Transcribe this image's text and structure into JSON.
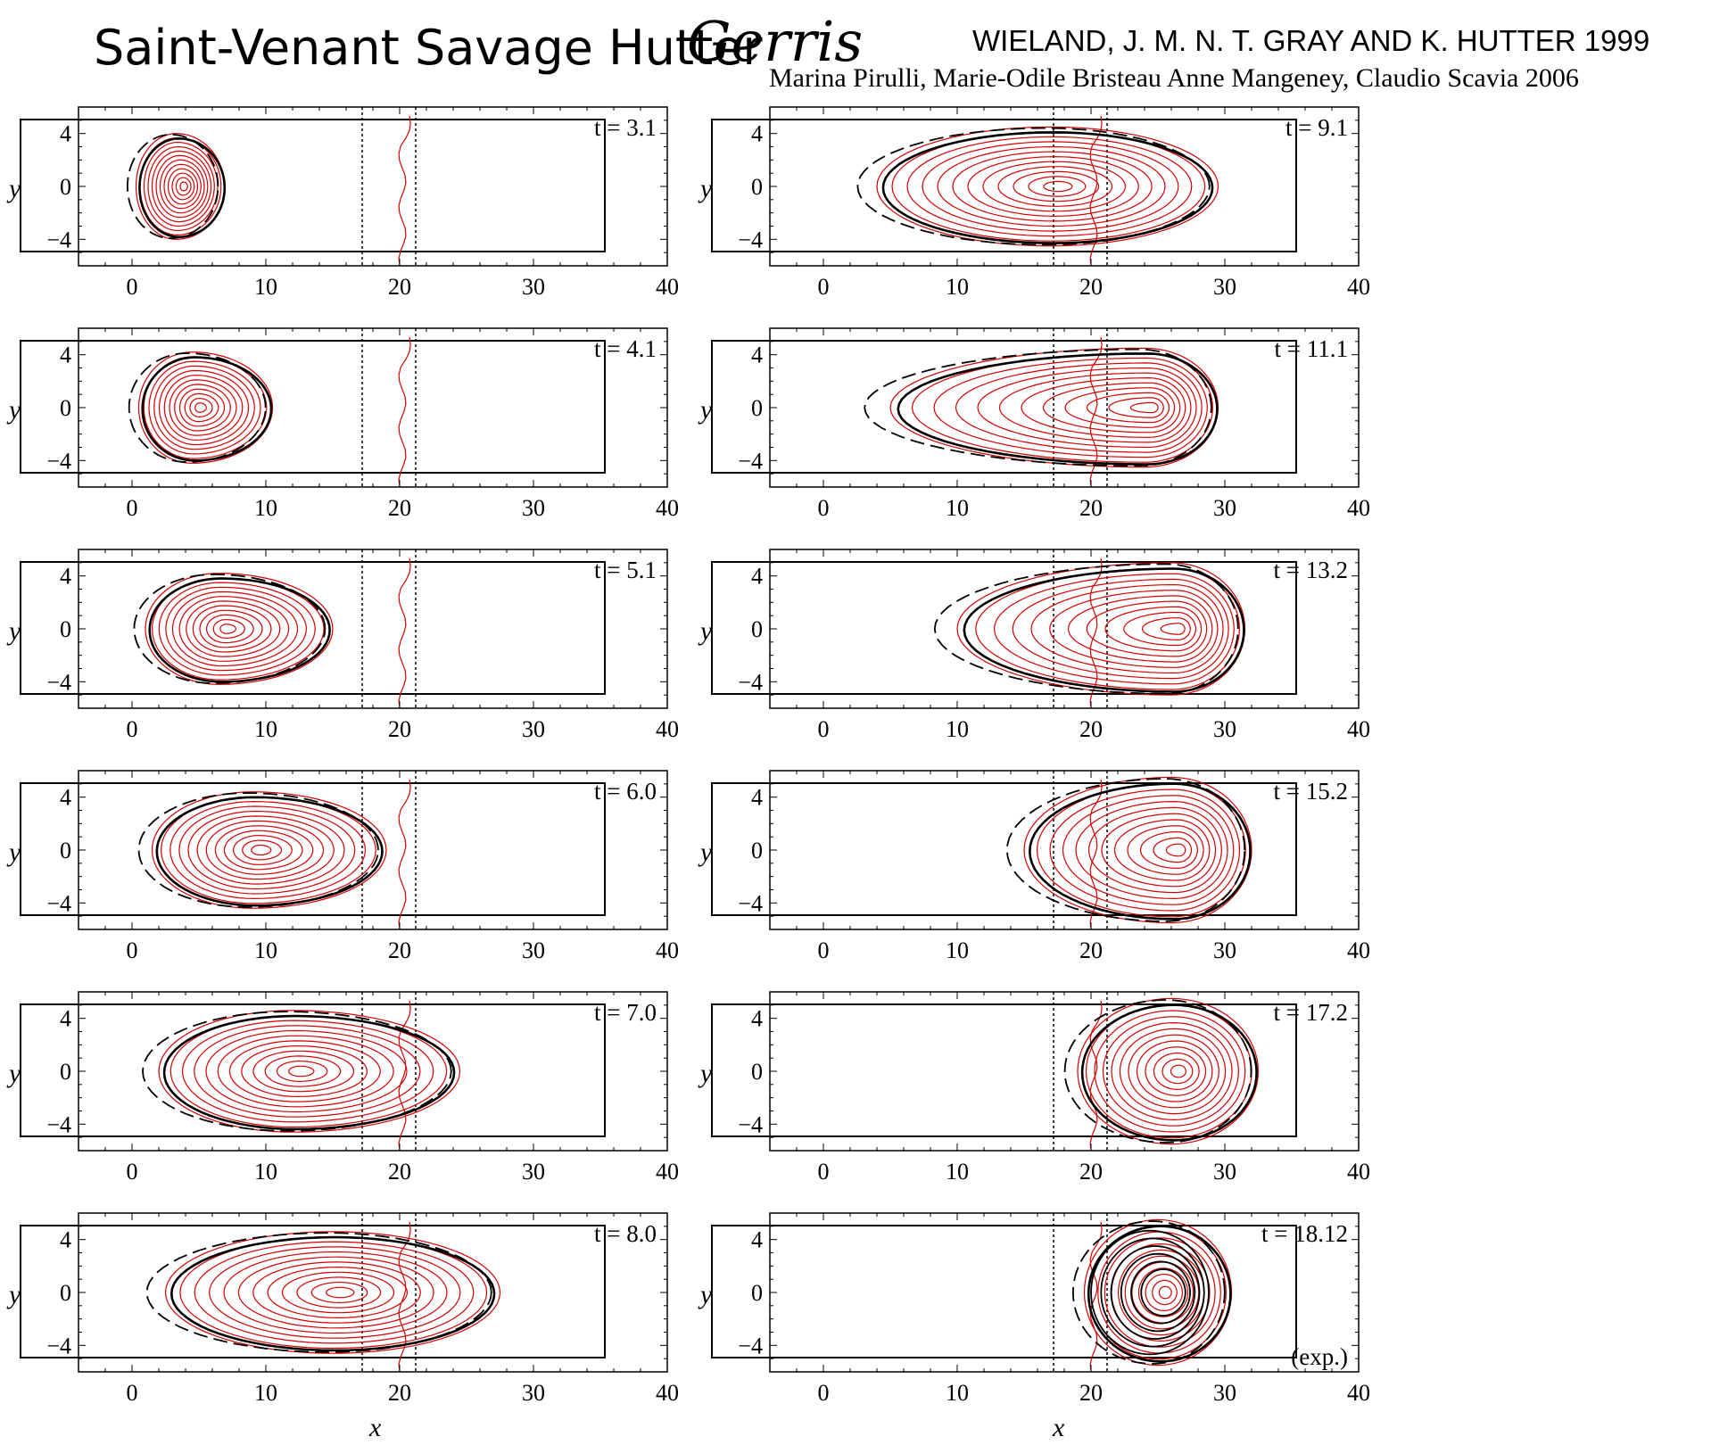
{
  "header": {
    "title_main": "Saint-Venant Savage Hutter",
    "title_software": "Gerris",
    "reference_1": "WIELAND, J. M. N. T. GRAY AND K. HUTTER 1999",
    "reference_2": "Marina Pirulli, Marie-Odile Bristeau Anne Mangeney, Claudio Scavia  2006"
  },
  "axes": {
    "x_label": "x",
    "y_label": "y",
    "x_ticks": [
      "0",
      "10",
      "20",
      "30",
      "40"
    ],
    "y_ticks": [
      "4",
      "0",
      "−4"
    ],
    "xlim": [
      -4,
      40
    ],
    "ylim": [
      -6,
      6
    ]
  },
  "legend_colors": {
    "simulation_contours": "#d40000",
    "model_outline": "#000000"
  },
  "panels": [
    {
      "label": "t = 3.1",
      "col": 0,
      "row": 0,
      "cx": 3.3,
      "wl": 3.0,
      "wr": 3.6,
      "w": 4.0,
      "n": 12
    },
    {
      "label": "t = 4.1",
      "col": 0,
      "row": 1,
      "cx": 4.5,
      "wl": 4.0,
      "wr": 6.0,
      "w": 4.2,
      "n": 12
    },
    {
      "label": "t = 5.1",
      "col": 0,
      "row": 2,
      "cx": 6.5,
      "wl": 5.5,
      "wr": 8.5,
      "w": 4.2,
      "n": 12
    },
    {
      "label": "t = 6.0",
      "col": 0,
      "row": 3,
      "cx": 9.0,
      "wl": 7.5,
      "wr": 10.0,
      "w": 4.4,
      "n": 12
    },
    {
      "label": "t = 7.0",
      "col": 0,
      "row": 4,
      "cx": 12.0,
      "wl": 10.0,
      "wr": 12.5,
      "w": 4.6,
      "n": 12
    },
    {
      "label": "t = 8.0",
      "col": 0,
      "row": 5,
      "cx": 15.0,
      "wl": 12.5,
      "wr": 12.5,
      "w": 4.6,
      "n": 12
    },
    {
      "label": "t = 9.1",
      "col": 1,
      "row": 0,
      "cx": 17.0,
      "wl": 13.0,
      "wr": 12.5,
      "w": 4.5,
      "n": 12
    },
    {
      "label": "t = 11.1",
      "col": 1,
      "row": 1,
      "cx": 24.0,
      "wl": 19.0,
      "wr": 5.5,
      "w": 4.5,
      "n": 12
    },
    {
      "label": "t = 13.2",
      "col": 1,
      "row": 2,
      "cx": 26.0,
      "wl": 16.0,
      "wr": 5.5,
      "w": 5.0,
      "n": 12
    },
    {
      "label": "t = 15.2",
      "col": 1,
      "row": 3,
      "cx": 26.0,
      "wl": 11.0,
      "wr": 6.0,
      "w": 5.5,
      "n": 12
    },
    {
      "label": "t = 17.2",
      "col": 1,
      "row": 4,
      "cx": 26.0,
      "wl": 7.0,
      "wr": 6.5,
      "w": 5.5,
      "n": 12
    },
    {
      "label": "t = 18.12",
      "col": 1,
      "row": 5,
      "cx": 25.0,
      "wl": 5.5,
      "wr": 5.5,
      "w": 5.5,
      "n": 12,
      "note": "(exp.)"
    }
  ]
}
